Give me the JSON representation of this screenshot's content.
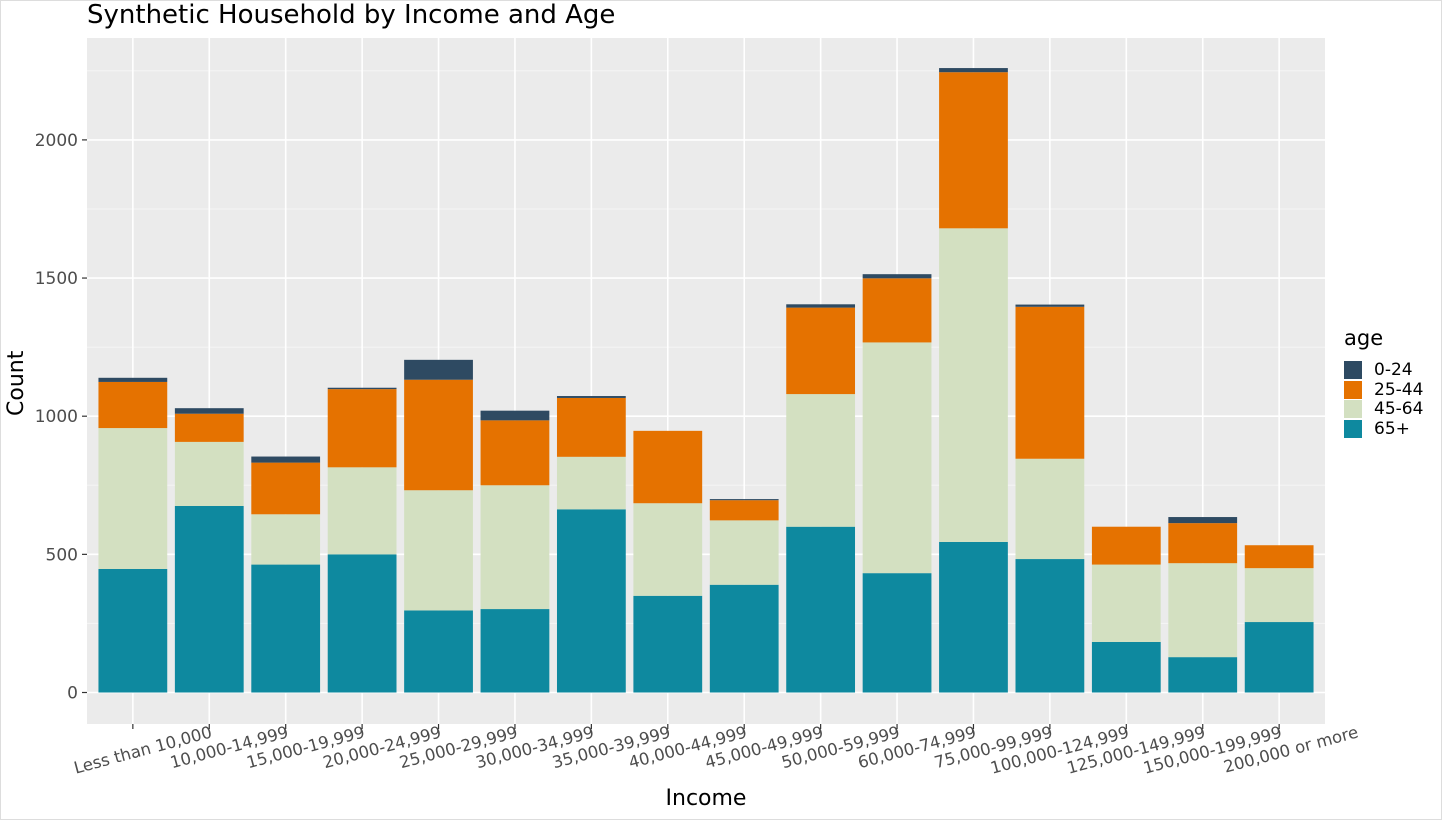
{
  "chart_data": {
    "type": "bar",
    "stacked": true,
    "title": "Synthetic Household by Income and Age",
    "xlabel": "Income",
    "ylabel": "Count",
    "ylim": [
      0,
      2300
    ],
    "y_ticks": [
      0,
      500,
      1000,
      1500,
      2000
    ],
    "grid": true,
    "legend_title": "age",
    "legend_position": "right",
    "categories": [
      "Less than 10,000",
      "10,000-14,999",
      "15,000-19,999",
      "20,000-24,999",
      "25,000-29,999",
      "30,000-34,999",
      "35,000-39,999",
      "40,000-44,999",
      "45,000-49,999",
      "50,000-59,999",
      "60,000-74,999",
      "75,000-99,999",
      "100,000-124,999",
      "125,000-149,999",
      "150,000-199,999",
      "200,000 or more"
    ],
    "series": [
      {
        "name": "0-24",
        "color": "#2e4a62",
        "values": [
          15,
          20,
          22,
          5,
          72,
          35,
          7,
          0,
          4,
          12,
          15,
          15,
          8,
          0,
          22,
          0
        ]
      },
      {
        "name": "25-44",
        "color": "#e57200",
        "values": [
          167,
          102,
          187,
          283,
          400,
          235,
          213,
          262,
          73,
          313,
          232,
          565,
          550,
          137,
          145,
          83
        ]
      },
      {
        "name": "45-64",
        "color": "#d3e0c1",
        "values": [
          510,
          232,
          182,
          315,
          435,
          448,
          190,
          335,
          233,
          480,
          835,
          1135,
          363,
          280,
          340,
          195
        ]
      },
      {
        "name": "65+",
        "color": "#0e899f",
        "values": [
          447,
          675,
          463,
          500,
          297,
          302,
          663,
          350,
          390,
          600,
          432,
          545,
          483,
          183,
          128,
          255
        ]
      }
    ]
  }
}
